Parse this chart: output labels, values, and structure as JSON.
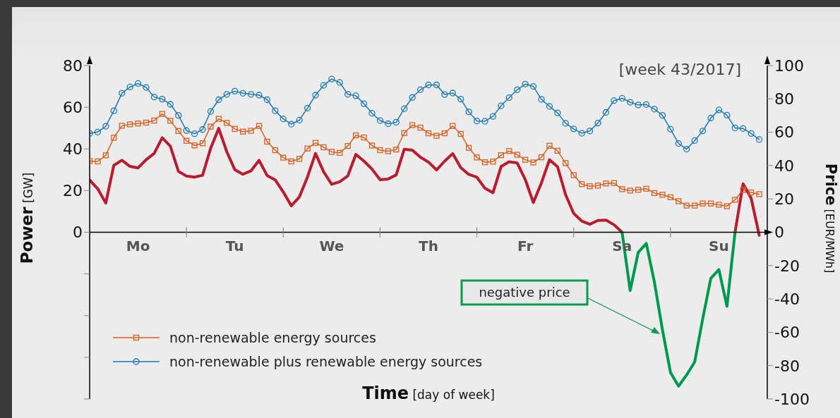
{
  "chart_data": {
    "type": "line",
    "xlabel": "Time [day of week]",
    "ylabel": "Power [GW]",
    "y2label": "Price [EUR/MWh]",
    "annotations": [
      "[week 43/2017]",
      "negative price"
    ],
    "categories": [
      null,
      null,
      null,
      null,
      null,
      null,
      "Mo",
      null,
      null,
      null,
      null,
      null,
      null,
      null,
      null,
      null,
      null,
      null,
      "Tu",
      null,
      null,
      null,
      null,
      null,
      null,
      null,
      null,
      null,
      null,
      null,
      "We",
      null,
      null,
      null,
      null,
      null,
      null,
      null,
      null,
      null,
      null,
      null,
      "Th",
      null,
      null,
      null,
      null,
      null,
      null,
      null,
      null,
      null,
      null,
      null,
      "Fr",
      null,
      null,
      null,
      null,
      null,
      null,
      null,
      null,
      null,
      null,
      null,
      "Sa",
      null,
      null,
      null,
      null,
      null,
      null,
      null,
      null,
      null,
      null,
      null,
      "Su",
      null,
      null,
      null,
      null,
      null
    ],
    "ylim": [
      -80,
      80
    ],
    "yticks": [
      {
        "value": -80,
        "label": null
      },
      {
        "value": -60,
        "label": null
      },
      {
        "value": -40,
        "label": null
      },
      {
        "value": -20,
        "label": null
      },
      0,
      20,
      40,
      60,
      80
    ],
    "y2lim": [
      -100,
      100
    ],
    "y2ticks": [
      -100,
      -80,
      -60,
      -40,
      -20,
      0,
      20,
      40,
      60,
      80,
      100
    ],
    "grid": false,
    "legend": "bottom left",
    "series": [
      {
        "name": "non-renewable energy sources",
        "color": "#d9601f",
        "marker": "square",
        "axis": "y",
        "values": [
          34.2,
          34,
          36.9,
          45.4,
          51.1,
          51.8,
          52.2,
          52.6,
          53.6,
          56.8,
          53.5,
          48.6,
          43.9,
          41.7,
          42.7,
          50.7,
          54.4,
          52.5,
          49.6,
          48.3,
          48.7,
          51,
          43.5,
          39.4,
          35.8,
          34,
          35.2,
          40.2,
          42.9,
          40.8,
          38.6,
          38.1,
          41.4,
          46.5,
          45.5,
          41.6,
          39.4,
          38.9,
          39.7,
          47.6,
          51.4,
          50.2,
          47.5,
          46.3,
          47.5,
          51,
          47.2,
          40.5,
          35.9,
          33.6,
          33.9,
          37,
          39,
          37.2,
          34.8,
          33.5,
          36,
          41.5,
          39.1,
          33.2,
          27.4,
          23.1,
          22.1,
          22.4,
          23.4,
          23.6,
          20.7,
          20,
          20.4,
          20.9,
          18.8,
          18,
          16.8,
          14.9,
          12.8,
          12.8,
          13.8,
          13.8,
          13.2,
          12.5,
          15.6,
          20.3,
          19.1,
          18.3
        ]
      },
      {
        "name": "non-renewable plus renewable energy sources",
        "color": "#1a78b4",
        "marker": "circle",
        "axis": "y",
        "values": [
          47.4,
          48.1,
          50.9,
          58.3,
          66.7,
          69.7,
          71.4,
          69.5,
          64.9,
          63.9,
          61.4,
          56.1,
          48.8,
          47.3,
          49.3,
          58,
          63.6,
          66.2,
          67.7,
          66.7,
          66.2,
          65.8,
          63.6,
          58.3,
          54.4,
          51.9,
          53.8,
          59.6,
          65.8,
          70.5,
          73.5,
          71.9,
          66.2,
          65.5,
          61.7,
          57.1,
          53.6,
          52.1,
          52.8,
          59.3,
          64.7,
          68.4,
          70.7,
          70.7,
          66.1,
          66.8,
          63.9,
          57.8,
          53.4,
          53.3,
          55.6,
          60.7,
          64.6,
          68.4,
          71.1,
          70,
          63.8,
          60.4,
          57.3,
          52.3,
          49.6,
          47.5,
          48.6,
          52.4,
          57.5,
          63.2,
          64.3,
          62.4,
          61.1,
          61.3,
          59.1,
          56.1,
          49.5,
          42.6,
          39.9,
          44,
          48.6,
          54.8,
          58.7,
          56.2,
          50.1,
          49.8,
          47.4,
          44.5
        ]
      },
      {
        "color": "#b81c2e",
        "marker": "none",
        "axis": "y2",
        "values": [
          31.3,
          26.1,
          17.5,
          40.2,
          43.2,
          39.5,
          38.6,
          43.5,
          47.3,
          56.7,
          51.6,
          36.6,
          33.7,
          33.1,
          34.2,
          50.4,
          62.3,
          48.3,
          37.5,
          34.8,
          36.8,
          43.2,
          34,
          31.4,
          24.2,
          15.9,
          21.2,
          33.1,
          47.3,
          36.3,
          28.8,
          30.3,
          33.8,
          46.7,
          42.7,
          37.9,
          31.5,
          31.9,
          34.4,
          49.8,
          49.3,
          45,
          42.1,
          37.4,
          42.6,
          47.2,
          38.8,
          34.7,
          33,
          26.4,
          23.7,
          39.4,
          42.3,
          41.6,
          31.6,
          17.8,
          29.6,
          43.5,
          39.3,
          22.5,
          11.3,
          6.7,
          4.8,
          7.1,
          7.3,
          4.5,
          0,
          null,
          null,
          null,
          null,
          null,
          null,
          null,
          null,
          null,
          null,
          null,
          null,
          null,
          0,
          29.1,
          20.4,
          -1.8
        ]
      },
      {
        "color": "#009a4e",
        "marker": "none",
        "axis": "y2",
        "values": [
          null,
          null,
          null,
          null,
          null,
          null,
          null,
          null,
          null,
          null,
          null,
          null,
          null,
          null,
          null,
          null,
          null,
          null,
          null,
          null,
          null,
          null,
          null,
          null,
          null,
          null,
          null,
          null,
          null,
          null,
          null,
          null,
          null,
          null,
          null,
          null,
          null,
          null,
          null,
          null,
          null,
          null,
          null,
          null,
          null,
          null,
          null,
          null,
          null,
          null,
          null,
          null,
          null,
          null,
          null,
          null,
          null,
          null,
          null,
          null,
          null,
          null,
          null,
          null,
          null,
          null,
          0,
          -35,
          -12.1,
          -6.7,
          -29.7,
          -58.4,
          -84.1,
          -92.3,
          -85.6,
          -77.8,
          -51.8,
          -27.6,
          -22.4,
          -44.4,
          0,
          null,
          null,
          null
        ]
      }
    ]
  }
}
